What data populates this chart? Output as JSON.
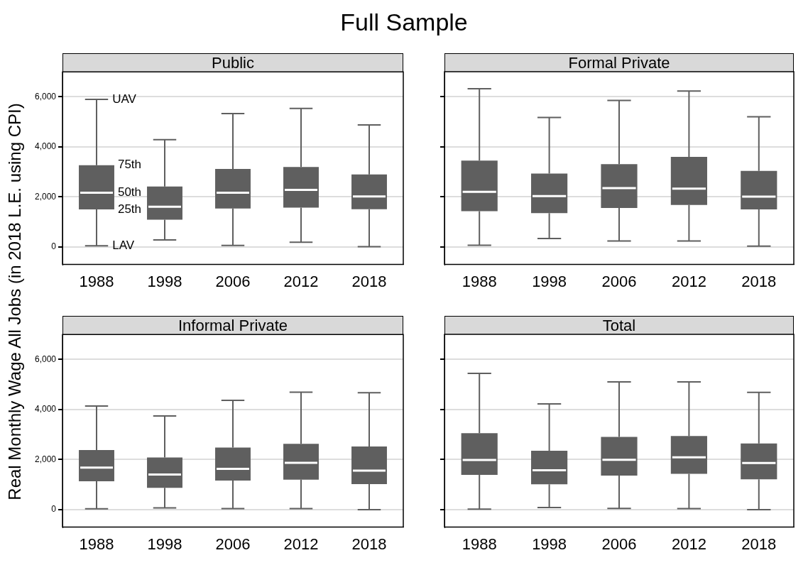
{
  "chart_data": [
    {
      "type": "box",
      "title": "Public",
      "subtitle": "Full Sample",
      "ylabel": "Real Monthly Wage All Jobs (in 2018 L.E. using CPI)",
      "categories": [
        "1988",
        "1998",
        "2006",
        "2012",
        "2018"
      ],
      "color": "#5f5f5f",
      "ylim": [
        -700,
        7000
      ],
      "yticks": [
        {
          "value": 0,
          "label": "0"
        },
        {
          "value": 2000,
          "label": "2,000"
        },
        {
          "value": 4000,
          "label": "4,000"
        },
        {
          "value": 6000,
          "label": "6,000"
        }
      ],
      "grid": "y",
      "boxes": [
        {
          "low": 50,
          "q1": 1500,
          "median": 2170,
          "q3": 3270,
          "high": 5900
        },
        {
          "low": 280,
          "q1": 1090,
          "median": 1610,
          "q3": 2420,
          "high": 4290
        },
        {
          "low": 60,
          "q1": 1540,
          "median": 2170,
          "q3": 3120,
          "high": 5330
        },
        {
          "low": 190,
          "q1": 1570,
          "median": 2280,
          "q3": 3200,
          "high": 5540
        },
        {
          "low": 10,
          "q1": 1510,
          "median": 2020,
          "q3": 2900,
          "high": 4880
        }
      ],
      "annotations": [
        {
          "text": "UAV",
          "x": "1988",
          "y": 5900
        },
        {
          "text": "75th",
          "x": "1988",
          "y": 3270
        },
        {
          "text": "50th",
          "x": "1988",
          "y": 2170
        },
        {
          "text": "25th",
          "x": "1988",
          "y": 1500
        },
        {
          "text": "LAV",
          "x": "1988",
          "y": 50
        }
      ]
    },
    {
      "type": "box",
      "title": "Formal Private",
      "categories": [
        "1988",
        "1998",
        "2006",
        "2012",
        "2018"
      ],
      "color": "#5f5f5f",
      "ylim": [
        -700,
        7000
      ],
      "yticks": [
        {
          "value": 0,
          "label": null
        },
        {
          "value": 2000,
          "label": null
        },
        {
          "value": 4000,
          "label": null
        },
        {
          "value": 6000,
          "label": null
        }
      ],
      "grid": "y",
      "tick_labels": "x",
      "boxes": [
        {
          "low": 70,
          "q1": 1430,
          "median": 2200,
          "q3": 3450,
          "high": 6320
        },
        {
          "low": 340,
          "q1": 1350,
          "median": 2030,
          "q3": 2930,
          "high": 5170
        },
        {
          "low": 240,
          "q1": 1560,
          "median": 2350,
          "q3": 3310,
          "high": 5850
        },
        {
          "low": 240,
          "q1": 1680,
          "median": 2330,
          "q3": 3600,
          "high": 6230
        },
        {
          "low": 30,
          "q1": 1500,
          "median": 2010,
          "q3": 3040,
          "high": 5200
        }
      ]
    },
    {
      "type": "box",
      "title": "Informal Private",
      "categories": [
        "1988",
        "1998",
        "2006",
        "2012",
        "2018"
      ],
      "color": "#5f5f5f",
      "ylim": [
        -700,
        7000
      ],
      "yticks": [
        {
          "value": 0,
          "label": "0"
        },
        {
          "value": 2000,
          "label": "2,000"
        },
        {
          "value": 4000,
          "label": "4,000"
        },
        {
          "value": 6000,
          "label": "6,000"
        }
      ],
      "grid": "y",
      "boxes": [
        {
          "low": 30,
          "q1": 1130,
          "median": 1680,
          "q3": 2380,
          "high": 4140
        },
        {
          "low": 70,
          "q1": 870,
          "median": 1400,
          "q3": 2080,
          "high": 3740
        },
        {
          "low": 40,
          "q1": 1160,
          "median": 1630,
          "q3": 2480,
          "high": 4370
        },
        {
          "low": 40,
          "q1": 1200,
          "median": 1870,
          "q3": 2630,
          "high": 4690
        },
        {
          "low": 0,
          "q1": 1020,
          "median": 1560,
          "q3": 2520,
          "high": 4670
        }
      ]
    },
    {
      "type": "box",
      "title": "Total",
      "categories": [
        "1988",
        "1998",
        "2006",
        "2012",
        "2018"
      ],
      "color": "#5f5f5f",
      "ylim": [
        -700,
        7000
      ],
      "yticks": [
        {
          "value": 0,
          "label": null
        },
        {
          "value": 2000,
          "label": null
        },
        {
          "value": 4000,
          "label": null
        },
        {
          "value": 6000,
          "label": null
        }
      ],
      "grid": "y",
      "tick_labels": "x",
      "boxes": [
        {
          "low": 20,
          "q1": 1390,
          "median": 1980,
          "q3": 3050,
          "high": 5440
        },
        {
          "low": 80,
          "q1": 1010,
          "median": 1570,
          "q3": 2350,
          "high": 4220
        },
        {
          "low": 50,
          "q1": 1360,
          "median": 1990,
          "q3": 2900,
          "high": 5100
        },
        {
          "low": 40,
          "q1": 1430,
          "median": 2090,
          "q3": 2940,
          "high": 5100
        },
        {
          "low": 0,
          "q1": 1210,
          "median": 1860,
          "q3": 2640,
          "high": 4680
        }
      ]
    }
  ]
}
